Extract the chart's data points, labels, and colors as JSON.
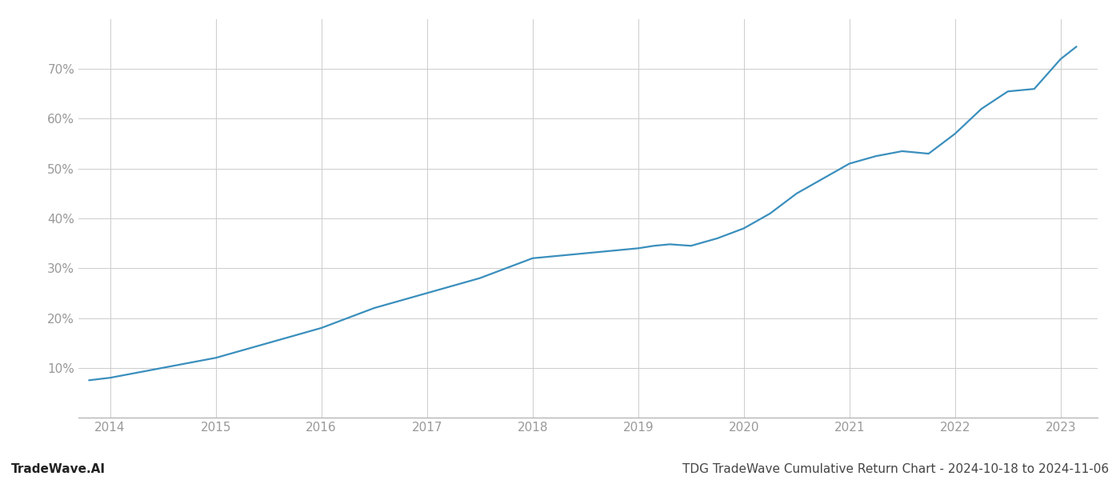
{
  "title": "TDG TradeWave Cumulative Return Chart - 2024-10-18 to 2024-11-06",
  "watermark": "TradeWave.AI",
  "line_color": "#3a8fbd",
  "background_color": "#ffffff",
  "grid_color": "#cccccc",
  "x_values": [
    2013.8,
    2014.0,
    2014.25,
    2014.5,
    2014.75,
    2015.0,
    2015.25,
    2015.5,
    2015.75,
    2016.0,
    2016.25,
    2016.5,
    2016.75,
    2017.0,
    2017.25,
    2017.5,
    2017.75,
    2018.0,
    2018.25,
    2018.5,
    2018.75,
    2019.0,
    2019.15,
    2019.3,
    2019.5,
    2019.75,
    2020.0,
    2020.25,
    2020.5,
    2020.75,
    2021.0,
    2021.25,
    2021.5,
    2021.75,
    2022.0,
    2022.25,
    2022.5,
    2022.75,
    2023.0,
    2023.15
  ],
  "y_values": [
    7.5,
    8.0,
    9.0,
    10.0,
    11.0,
    12.0,
    13.5,
    15.0,
    16.5,
    18.0,
    20.0,
    22.0,
    23.5,
    25.0,
    26.5,
    28.0,
    30.0,
    32.0,
    32.5,
    33.0,
    33.5,
    34.0,
    34.5,
    34.8,
    34.5,
    36.0,
    38.0,
    41.0,
    45.0,
    48.0,
    51.0,
    52.5,
    53.5,
    53.0,
    57.0,
    62.0,
    65.5,
    66.0,
    72.0,
    74.5
  ],
  "xlim": [
    2013.7,
    2023.35
  ],
  "ylim": [
    0,
    80
  ],
  "yticks": [
    10,
    20,
    30,
    40,
    50,
    60,
    70
  ],
  "xticks": [
    2014,
    2015,
    2016,
    2017,
    2018,
    2019,
    2020,
    2021,
    2022,
    2023
  ],
  "tick_color": "#999999",
  "label_fontsize": 11,
  "watermark_fontsize": 11,
  "title_fontsize": 11,
  "line_width": 1.6
}
